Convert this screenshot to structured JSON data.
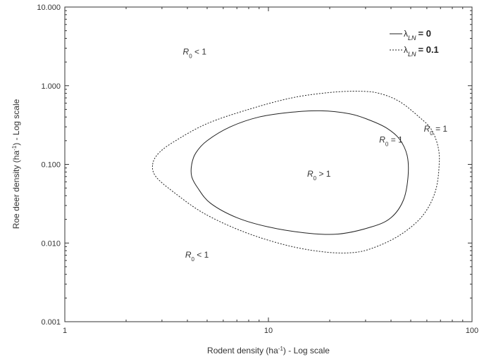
{
  "chart_data": {
    "type": "line",
    "x_scale": "log",
    "y_scale": "log",
    "xlim": [
      1,
      100
    ],
    "ylim": [
      0.001,
      10
    ],
    "x_ticks": [
      {
        "value": 1,
        "label": "1"
      },
      {
        "value": 10,
        "label": "10"
      },
      {
        "value": 100,
        "label": "100"
      }
    ],
    "y_ticks": [
      {
        "value": 10,
        "label": "10.000"
      },
      {
        "value": 1,
        "label": "1.000"
      },
      {
        "value": 0.1,
        "label": "0.100"
      },
      {
        "value": 0.01,
        "label": "0.010"
      },
      {
        "value": 0.001,
        "label": "0.001"
      }
    ],
    "xlabel": {
      "main": "Rodent density (ha",
      "sup": "-1",
      "tail": ") - Log scale"
    },
    "ylabel": {
      "main": "Roe deer density (ha",
      "sup": "-1",
      "tail": ") - Log scale"
    },
    "grid": false,
    "legend_position": "top-right",
    "series": [
      {
        "name": "λLN = 0",
        "legend": {
          "symbol": "λ",
          "sub": "LN",
          "value": "= 0"
        },
        "style": "solid",
        "closed": true,
        "points": [
          [
            4.2,
            0.1
          ],
          [
            4.4,
            0.14
          ],
          [
            5.0,
            0.2
          ],
          [
            6.5,
            0.3
          ],
          [
            9.0,
            0.4
          ],
          [
            13,
            0.46
          ],
          [
            18,
            0.48
          ],
          [
            25,
            0.44
          ],
          [
            31,
            0.37
          ],
          [
            38,
            0.29
          ],
          [
            44,
            0.21
          ],
          [
            48,
            0.13
          ],
          [
            48.5,
            0.07
          ],
          [
            46,
            0.035
          ],
          [
            40,
            0.021
          ],
          [
            32,
            0.016
          ],
          [
            22,
            0.013
          ],
          [
            15,
            0.0135
          ],
          [
            10,
            0.016
          ],
          [
            7,
            0.021
          ],
          [
            5.2,
            0.032
          ],
          [
            4.5,
            0.05
          ],
          [
            4.2,
            0.07
          ],
          [
            4.2,
            0.1
          ]
        ]
      },
      {
        "name": "λLN = 0.1",
        "legend": {
          "symbol": "λ",
          "sub": "LN",
          "value": "= 0.1"
        },
        "style": "dashed",
        "closed": true,
        "points": [
          [
            2.7,
            0.1
          ],
          [
            2.9,
            0.14
          ],
          [
            3.5,
            0.2
          ],
          [
            5.0,
            0.33
          ],
          [
            8.0,
            0.5
          ],
          [
            13,
            0.7
          ],
          [
            20,
            0.82
          ],
          [
            28,
            0.85
          ],
          [
            35,
            0.8
          ],
          [
            44,
            0.63
          ],
          [
            55,
            0.4
          ],
          [
            63,
            0.28
          ],
          [
            68,
            0.17
          ],
          [
            69,
            0.1
          ],
          [
            66,
            0.045
          ],
          [
            57,
            0.022
          ],
          [
            44,
            0.0125
          ],
          [
            32,
            0.0085
          ],
          [
            25,
            0.0075
          ],
          [
            18,
            0.0078
          ],
          [
            12,
            0.0095
          ],
          [
            7.5,
            0.014
          ],
          [
            4.8,
            0.024
          ],
          [
            3.4,
            0.045
          ],
          [
            2.8,
            0.07
          ],
          [
            2.7,
            0.1
          ]
        ]
      }
    ],
    "annotations": [
      {
        "base": "R",
        "sub": "0",
        "rel": " < 1",
        "x": 3.8,
        "y": 2.5
      },
      {
        "base": "R",
        "sub": "0",
        "rel": " = 1",
        "x": 58,
        "y": 0.26
      },
      {
        "base": "R",
        "sub": "0",
        "rel": " = 1",
        "x": 35,
        "y": 0.19
      },
      {
        "base": "R",
        "sub": "0",
        "rel": " > 1",
        "x": 15.5,
        "y": 0.07
      },
      {
        "base": "R",
        "sub": "0",
        "rel": " < 1",
        "x": 3.9,
        "y": 0.0065
      }
    ]
  }
}
